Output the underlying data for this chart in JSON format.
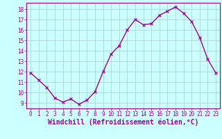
{
  "hours": [
    0,
    1,
    2,
    3,
    4,
    5,
    6,
    7,
    8,
    9,
    10,
    11,
    12,
    13,
    14,
    15,
    16,
    17,
    18,
    19,
    20,
    21,
    22,
    23
  ],
  "values": [
    11.9,
    11.2,
    10.5,
    9.5,
    9.1,
    9.4,
    8.9,
    9.3,
    10.1,
    12.0,
    13.7,
    14.5,
    16.0,
    17.0,
    16.5,
    16.6,
    17.4,
    17.8,
    18.2,
    17.6,
    16.8,
    15.3,
    13.2,
    11.9
  ],
  "line_color": "#990099",
  "marker": "x",
  "marker_size": 3,
  "line_width": 1.0,
  "xlabel": "Windchill (Refroidissement éolien,°C)",
  "xlabel_fontsize": 7,
  "ylim": [
    8.5,
    18.6
  ],
  "yticks": [
    9,
    10,
    11,
    12,
    13,
    14,
    15,
    16,
    17,
    18
  ],
  "xticks": [
    0,
    1,
    2,
    3,
    4,
    5,
    6,
    7,
    8,
    9,
    10,
    11,
    12,
    13,
    14,
    15,
    16,
    17,
    18,
    19,
    20,
    21,
    22,
    23
  ],
  "background_color": "#ccffff",
  "grid_color": "#aacccc",
  "tick_fontsize": 5.5,
  "label_color": "#990099"
}
